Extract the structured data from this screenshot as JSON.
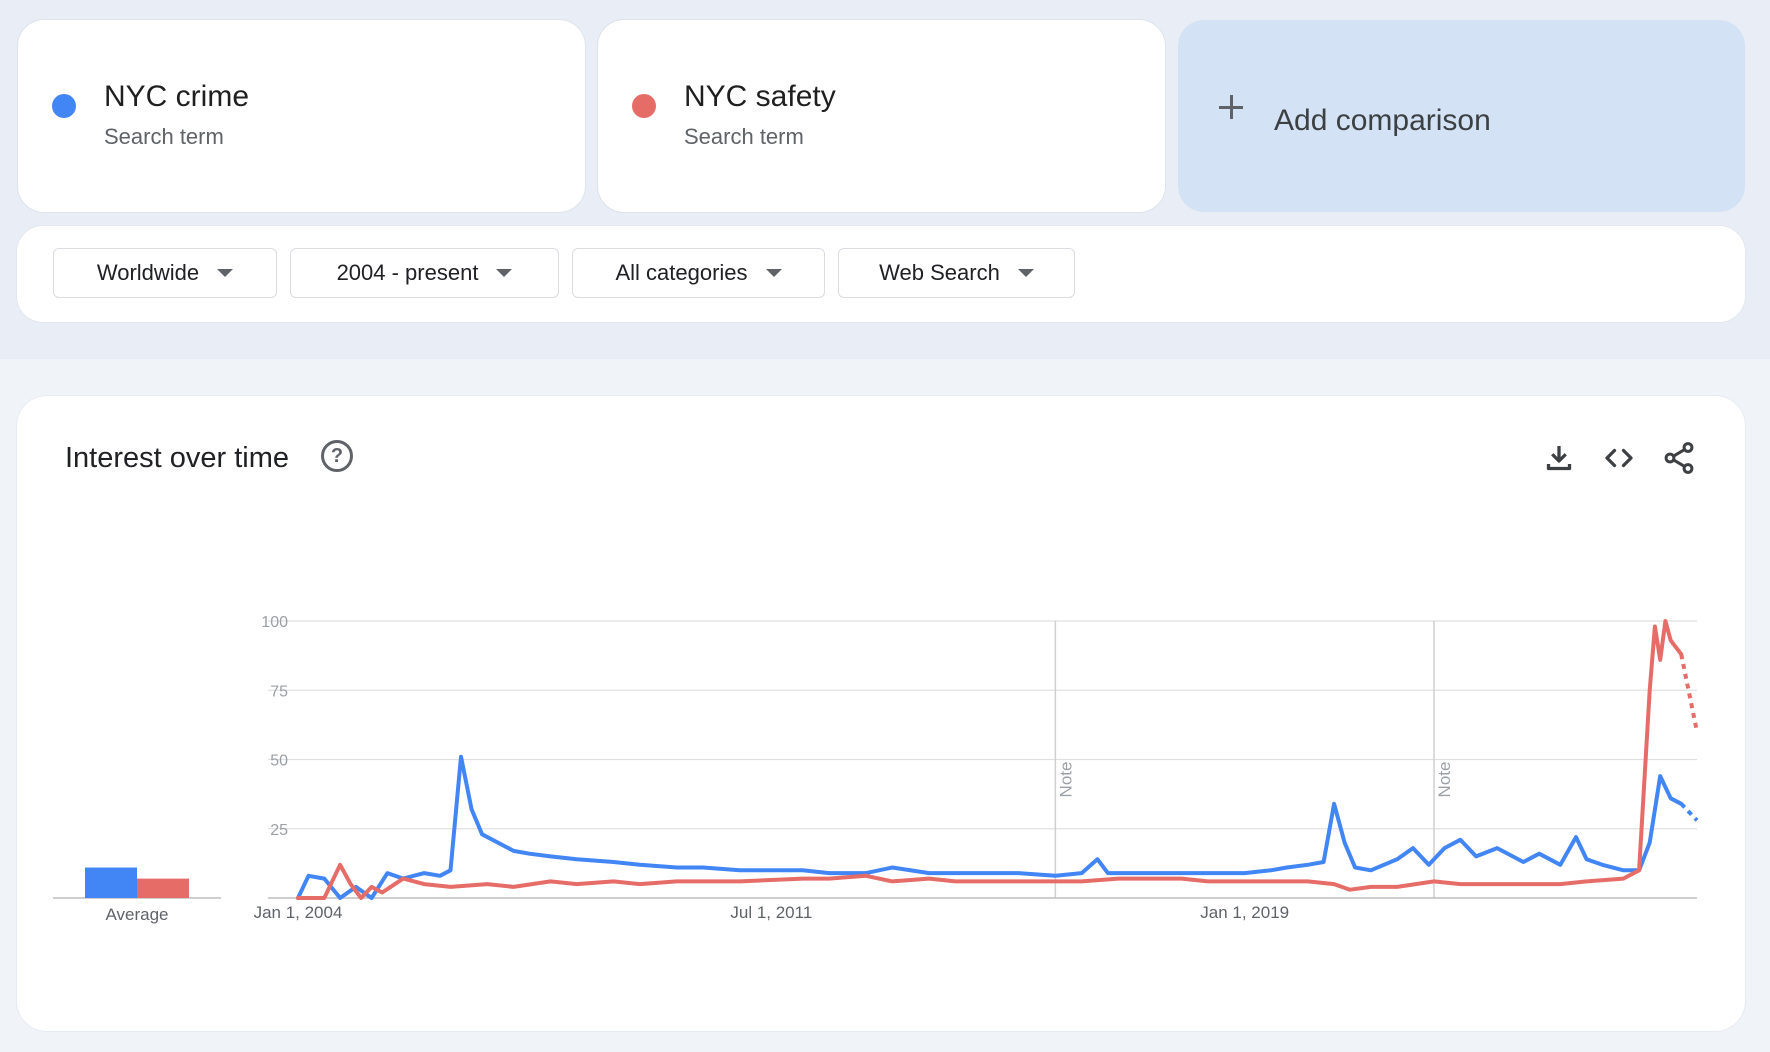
{
  "terms": [
    {
      "name": "NYC crime",
      "subtitle": "Search term",
      "color": "#4285f4"
    },
    {
      "name": "NYC safety",
      "subtitle": "Search term",
      "color": "#e66c68"
    }
  ],
  "add_comparison": {
    "label": "Add comparison"
  },
  "filters": [
    {
      "label": "Worldwide"
    },
    {
      "label": "2004 - present"
    },
    {
      "label": "All categories"
    },
    {
      "label": "Web Search"
    }
  ],
  "chart_section": {
    "title": "Interest over time",
    "icons": [
      "help-icon",
      "download-icon",
      "embed-code-icon",
      "share-icon"
    ]
  },
  "chart_data": {
    "type": "line",
    "xlabel": "",
    "ylabel": "",
    "ylim": [
      0,
      100
    ],
    "yticks": [
      25,
      50,
      75,
      100
    ],
    "xticks": [
      "Jan 1, 2004",
      "Jul 1, 2011",
      "Jan 1, 2019"
    ],
    "x_range": [
      "2004-01",
      "2026-03"
    ],
    "grid": true,
    "notes": [
      {
        "date": "2016-01",
        "label": "Note"
      },
      {
        "date": "2022-01",
        "label": "Note"
      }
    ],
    "average": {
      "label": "Average",
      "values": [
        11,
        7
      ]
    },
    "partial_data_from": "2025-12",
    "series": [
      {
        "name": "NYC crime",
        "color": "#4285f4",
        "points": [
          [
            "2004-01",
            0
          ],
          [
            "2004-03",
            8
          ],
          [
            "2004-06",
            7
          ],
          [
            "2004-09",
            0
          ],
          [
            "2004-12",
            4
          ],
          [
            "2005-03",
            0
          ],
          [
            "2005-06",
            9
          ],
          [
            "2005-09",
            7
          ],
          [
            "2006-01",
            9
          ],
          [
            "2006-04",
            8
          ],
          [
            "2006-06",
            10
          ],
          [
            "2006-08",
            51
          ],
          [
            "2006-10",
            32
          ],
          [
            "2006-12",
            23
          ],
          [
            "2007-03",
            20
          ],
          [
            "2007-06",
            17
          ],
          [
            "2007-09",
            16
          ],
          [
            "2008-01",
            15
          ],
          [
            "2008-06",
            14
          ],
          [
            "2009-01",
            13
          ],
          [
            "2009-06",
            12
          ],
          [
            "2010-01",
            11
          ],
          [
            "2010-06",
            11
          ],
          [
            "2011-01",
            10
          ],
          [
            "2011-06",
            10
          ],
          [
            "2012-01",
            10
          ],
          [
            "2012-06",
            9
          ],
          [
            "2013-01",
            9
          ],
          [
            "2013-06",
            11
          ],
          [
            "2014-01",
            9
          ],
          [
            "2014-06",
            9
          ],
          [
            "2015-01",
            9
          ],
          [
            "2015-06",
            9
          ],
          [
            "2016-01",
            8
          ],
          [
            "2016-06",
            9
          ],
          [
            "2016-09",
            14
          ],
          [
            "2016-11",
            9
          ],
          [
            "2017-06",
            9
          ],
          [
            "2018-01",
            9
          ],
          [
            "2018-06",
            9
          ],
          [
            "2019-01",
            9
          ],
          [
            "2019-06",
            10
          ],
          [
            "2019-09",
            11
          ],
          [
            "2020-01",
            12
          ],
          [
            "2020-04",
            13
          ],
          [
            "2020-06",
            34
          ],
          [
            "2020-08",
            20
          ],
          [
            "2020-10",
            11
          ],
          [
            "2021-01",
            10
          ],
          [
            "2021-06",
            14
          ],
          [
            "2021-09",
            18
          ],
          [
            "2021-12",
            12
          ],
          [
            "2022-03",
            18
          ],
          [
            "2022-06",
            21
          ],
          [
            "2022-09",
            15
          ],
          [
            "2023-01",
            18
          ],
          [
            "2023-06",
            13
          ],
          [
            "2023-09",
            16
          ],
          [
            "2024-01",
            12
          ],
          [
            "2024-04",
            22
          ],
          [
            "2024-06",
            14
          ],
          [
            "2024-09",
            12
          ],
          [
            "2025-01",
            10
          ],
          [
            "2025-04",
            10
          ],
          [
            "2025-06",
            20
          ],
          [
            "2025-08",
            44
          ],
          [
            "2025-10",
            36
          ],
          [
            "2025-12",
            34
          ],
          [
            "2026-03",
            28
          ]
        ]
      },
      {
        "name": "NYC safety",
        "color": "#e66c68",
        "points": [
          [
            "2004-01",
            0
          ],
          [
            "2004-06",
            0
          ],
          [
            "2004-09",
            12
          ],
          [
            "2004-11",
            5
          ],
          [
            "2005-01",
            0
          ],
          [
            "2005-03",
            4
          ],
          [
            "2005-05",
            2
          ],
          [
            "2005-09",
            7
          ],
          [
            "2006-01",
            5
          ],
          [
            "2006-06",
            4
          ],
          [
            "2007-01",
            5
          ],
          [
            "2007-06",
            4
          ],
          [
            "2008-01",
            6
          ],
          [
            "2008-06",
            5
          ],
          [
            "2009-01",
            6
          ],
          [
            "2009-06",
            5
          ],
          [
            "2010-01",
            6
          ],
          [
            "2010-06",
            6
          ],
          [
            "2011-01",
            6
          ],
          [
            "2012-01",
            7
          ],
          [
            "2012-06",
            7
          ],
          [
            "2013-01",
            8
          ],
          [
            "2013-06",
            6
          ],
          [
            "2014-01",
            7
          ],
          [
            "2014-06",
            6
          ],
          [
            "2015-01",
            6
          ],
          [
            "2015-06",
            6
          ],
          [
            "2016-01",
            6
          ],
          [
            "2016-06",
            6
          ],
          [
            "2017-01",
            7
          ],
          [
            "2017-06",
            7
          ],
          [
            "2018-01",
            7
          ],
          [
            "2018-06",
            6
          ],
          [
            "2019-01",
            6
          ],
          [
            "2019-06",
            6
          ],
          [
            "2020-01",
            6
          ],
          [
            "2020-06",
            5
          ],
          [
            "2020-09",
            3
          ],
          [
            "2021-01",
            4
          ],
          [
            "2021-06",
            4
          ],
          [
            "2022-01",
            6
          ],
          [
            "2022-06",
            5
          ],
          [
            "2023-01",
            5
          ],
          [
            "2023-06",
            5
          ],
          [
            "2024-01",
            5
          ],
          [
            "2024-06",
            6
          ],
          [
            "2025-01",
            7
          ],
          [
            "2025-04",
            10
          ],
          [
            "2025-06",
            75
          ],
          [
            "2025-07",
            98
          ],
          [
            "2025-08",
            86
          ],
          [
            "2025-09",
            100
          ],
          [
            "2025-10",
            93
          ],
          [
            "2025-12",
            88
          ],
          [
            "2026-03",
            60
          ]
        ]
      }
    ]
  }
}
